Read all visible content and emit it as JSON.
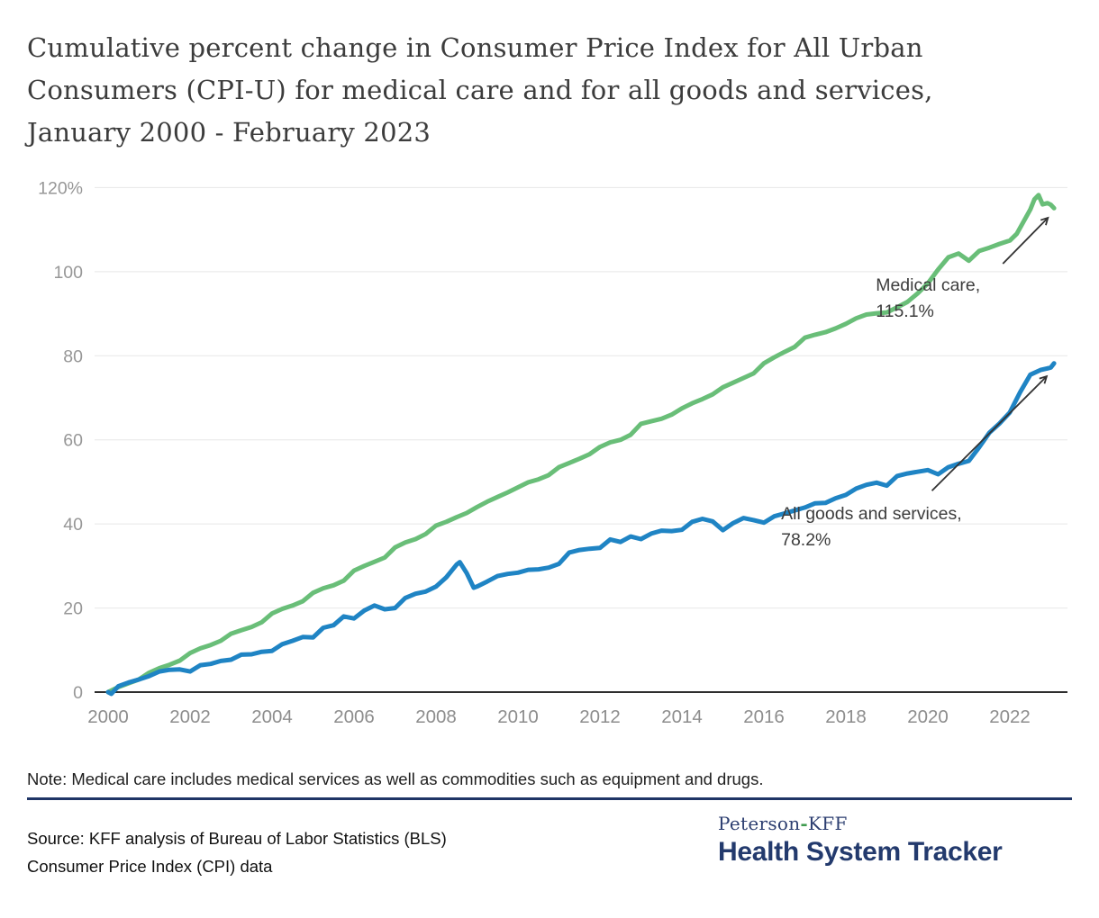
{
  "title_lines": [
    "Cumulative percent change in Consumer Price Index for All Urban",
    "Consumers (CPI-U) for medical care and for all goods and services,",
    "January 2000 - February 2023"
  ],
  "note": "Note: Medical care includes medical services as well as commodities such as equipment and drugs.",
  "source_line1": "Source: KFF analysis of Bureau of Labor Statistics (BLS)",
  "source_line2": "Consumer Price Index (CPI) data",
  "logo": {
    "prefix": "Peterson",
    "separator": "-",
    "suffix": "KFF",
    "name": "Health System Tracker"
  },
  "colors": {
    "medical_green": "#69be78",
    "goods_blue": "#1f84c4",
    "navy": "#233a6d",
    "divider_navy": "#1f3566",
    "gridline": "#e7e7e7",
    "axis_line": "#2e2e2e",
    "annotation_text": "#3d3d3d"
  },
  "chart_data": {
    "type": "line",
    "x_range": [
      2000,
      2023.25
    ],
    "y_range": [
      0,
      120
    ],
    "grid": "horizontal-only",
    "legend_position": "inline-annotations",
    "x_ticks": [
      2000,
      2002,
      2004,
      2006,
      2008,
      2010,
      2012,
      2014,
      2016,
      2018,
      2020,
      2022
    ],
    "y_ticks": [
      {
        "value": 0,
        "label": "0"
      },
      {
        "value": 20,
        "label": "20"
      },
      {
        "value": 40,
        "label": "40"
      },
      {
        "value": 60,
        "label": "60"
      },
      {
        "value": 80,
        "label": "80"
      },
      {
        "value": 100,
        "label": "100"
      },
      {
        "value": 120,
        "label": "120%"
      }
    ],
    "series": [
      {
        "id": "medical-care",
        "name": "Medical care",
        "color": "#69be78",
        "end_value": "115.1%",
        "annotation": {
          "lines": [
            "Medical care,",
            "115.1%"
          ],
          "x": 2018.73,
          "y": 95.5,
          "arrow": [
            2021.83,
            101.9,
            2022.93,
            112.8
          ]
        },
        "points": [
          [
            2000,
            0
          ],
          [
            2000.25,
            1.2
          ],
          [
            2000.5,
            2.1
          ],
          [
            2000.75,
            3.0
          ],
          [
            2001,
            4.6
          ],
          [
            2001.25,
            5.7
          ],
          [
            2001.5,
            6.5
          ],
          [
            2001.75,
            7.5
          ],
          [
            2002,
            9.3
          ],
          [
            2002.25,
            10.4
          ],
          [
            2002.5,
            11.2
          ],
          [
            2002.75,
            12.2
          ],
          [
            2003,
            13.9
          ],
          [
            2003.25,
            14.7
          ],
          [
            2003.5,
            15.5
          ],
          [
            2003.75,
            16.6
          ],
          [
            2004,
            18.7
          ],
          [
            2004.25,
            19.8
          ],
          [
            2004.5,
            20.6
          ],
          [
            2004.75,
            21.6
          ],
          [
            2005,
            23.6
          ],
          [
            2005.25,
            24.7
          ],
          [
            2005.5,
            25.4
          ],
          [
            2005.75,
            26.5
          ],
          [
            2006,
            28.9
          ],
          [
            2006.25,
            30.0
          ],
          [
            2006.5,
            31.0
          ],
          [
            2006.75,
            32.0
          ],
          [
            2007,
            34.4
          ],
          [
            2007.25,
            35.6
          ],
          [
            2007.5,
            36.4
          ],
          [
            2007.75,
            37.6
          ],
          [
            2008,
            39.6
          ],
          [
            2008.25,
            40.5
          ],
          [
            2008.5,
            41.6
          ],
          [
            2008.75,
            42.6
          ],
          [
            2009,
            44.0
          ],
          [
            2009.25,
            45.3
          ],
          [
            2009.5,
            46.4
          ],
          [
            2009.75,
            47.5
          ],
          [
            2010,
            48.7
          ],
          [
            2010.25,
            49.9
          ],
          [
            2010.5,
            50.6
          ],
          [
            2010.75,
            51.6
          ],
          [
            2011,
            53.5
          ],
          [
            2011.25,
            54.5
          ],
          [
            2011.5,
            55.5
          ],
          [
            2011.75,
            56.6
          ],
          [
            2012,
            58.3
          ],
          [
            2012.25,
            59.4
          ],
          [
            2012.5,
            60.0
          ],
          [
            2012.75,
            61.2
          ],
          [
            2013,
            63.8
          ],
          [
            2013.25,
            64.4
          ],
          [
            2013.5,
            65.0
          ],
          [
            2013.75,
            66.0
          ],
          [
            2014,
            67.5
          ],
          [
            2014.25,
            68.7
          ],
          [
            2014.5,
            69.7
          ],
          [
            2014.75,
            70.8
          ],
          [
            2015,
            72.5
          ],
          [
            2015.25,
            73.6
          ],
          [
            2015.5,
            74.7
          ],
          [
            2015.75,
            75.8
          ],
          [
            2016,
            78.2
          ],
          [
            2016.25,
            79.6
          ],
          [
            2016.5,
            80.9
          ],
          [
            2016.75,
            82.1
          ],
          [
            2017,
            84.3
          ],
          [
            2017.25,
            85.0
          ],
          [
            2017.5,
            85.6
          ],
          [
            2017.75,
            86.5
          ],
          [
            2018,
            87.6
          ],
          [
            2018.25,
            88.9
          ],
          [
            2018.5,
            89.8
          ],
          [
            2018.75,
            90.1
          ],
          [
            2019,
            90.3
          ],
          [
            2019.25,
            91.5
          ],
          [
            2019.5,
            92.8
          ],
          [
            2019.75,
            94.8
          ],
          [
            2020,
            97.2
          ],
          [
            2020.25,
            100.5
          ],
          [
            2020.5,
            103.4
          ],
          [
            2020.75,
            104.3
          ],
          [
            2021,
            102.6
          ],
          [
            2021.25,
            104.9
          ],
          [
            2021.5,
            105.7
          ],
          [
            2021.75,
            106.6
          ],
          [
            2022,
            107.4
          ],
          [
            2022.17,
            109.0
          ],
          [
            2022.33,
            111.8
          ],
          [
            2022.5,
            114.8
          ],
          [
            2022.6,
            117.2
          ],
          [
            2022.7,
            118.2
          ],
          [
            2022.8,
            116.0
          ],
          [
            2022.92,
            116.3
          ],
          [
            2023,
            115.9
          ],
          [
            2023.08,
            115.1
          ]
        ]
      },
      {
        "id": "all-goods-and-services",
        "name": "All goods and services",
        "color": "#1f84c4",
        "end_value": "78.2%",
        "annotation": {
          "lines": [
            "All goods and services,",
            "78.2%"
          ],
          "x": 2016.42,
          "y": 41.1,
          "arrow": [
            2020.1,
            47.9,
            2022.9,
            75.1
          ]
        },
        "points": [
          [
            2000,
            0
          ],
          [
            2000.08,
            -0.4
          ],
          [
            2000.25,
            1.4
          ],
          [
            2000.5,
            2.3
          ],
          [
            2000.75,
            3.0
          ],
          [
            2001,
            3.8
          ],
          [
            2001.25,
            4.9
          ],
          [
            2001.5,
            5.3
          ],
          [
            2001.75,
            5.4
          ],
          [
            2002,
            4.9
          ],
          [
            2002.25,
            6.4
          ],
          [
            2002.5,
            6.7
          ],
          [
            2002.75,
            7.4
          ],
          [
            2003,
            7.7
          ],
          [
            2003.25,
            8.9
          ],
          [
            2003.5,
            9.0
          ],
          [
            2003.75,
            9.6
          ],
          [
            2004,
            9.8
          ],
          [
            2004.25,
            11.4
          ],
          [
            2004.5,
            12.2
          ],
          [
            2004.75,
            13.1
          ],
          [
            2005,
            13.0
          ],
          [
            2005.25,
            15.3
          ],
          [
            2005.5,
            15.9
          ],
          [
            2005.75,
            18.0
          ],
          [
            2006,
            17.5
          ],
          [
            2006.25,
            19.4
          ],
          [
            2006.5,
            20.6
          ],
          [
            2006.75,
            19.7
          ],
          [
            2007,
            20.0
          ],
          [
            2007.25,
            22.4
          ],
          [
            2007.5,
            23.4
          ],
          [
            2007.75,
            23.9
          ],
          [
            2008,
            25.1
          ],
          [
            2008.25,
            27.3
          ],
          [
            2008.5,
            30.3
          ],
          [
            2008.58,
            30.9
          ],
          [
            2008.75,
            28.3
          ],
          [
            2008.92,
            24.8
          ],
          [
            2009,
            25.1
          ],
          [
            2009.25,
            26.3
          ],
          [
            2009.5,
            27.6
          ],
          [
            2009.75,
            28.1
          ],
          [
            2010,
            28.4
          ],
          [
            2010.25,
            29.1
          ],
          [
            2010.5,
            29.2
          ],
          [
            2010.75,
            29.6
          ],
          [
            2011,
            30.5
          ],
          [
            2011.25,
            33.2
          ],
          [
            2011.5,
            33.8
          ],
          [
            2011.75,
            34.1
          ],
          [
            2012,
            34.3
          ],
          [
            2012.25,
            36.3
          ],
          [
            2012.5,
            35.7
          ],
          [
            2012.75,
            37.0
          ],
          [
            2013,
            36.4
          ],
          [
            2013.25,
            37.7
          ],
          [
            2013.5,
            38.4
          ],
          [
            2013.75,
            38.3
          ],
          [
            2014,
            38.6
          ],
          [
            2014.25,
            40.5
          ],
          [
            2014.5,
            41.2
          ],
          [
            2014.75,
            40.6
          ],
          [
            2015,
            38.5
          ],
          [
            2015.25,
            40.2
          ],
          [
            2015.5,
            41.4
          ],
          [
            2015.75,
            40.9
          ],
          [
            2016,
            40.3
          ],
          [
            2016.25,
            41.8
          ],
          [
            2016.5,
            42.5
          ],
          [
            2016.75,
            43.2
          ],
          [
            2017,
            43.9
          ],
          [
            2017.25,
            44.9
          ],
          [
            2017.5,
            45.0
          ],
          [
            2017.75,
            46.1
          ],
          [
            2018,
            46.9
          ],
          [
            2018.25,
            48.4
          ],
          [
            2018.5,
            49.3
          ],
          [
            2018.75,
            49.8
          ],
          [
            2019,
            49.1
          ],
          [
            2019.25,
            51.4
          ],
          [
            2019.5,
            52.0
          ],
          [
            2019.75,
            52.4
          ],
          [
            2020,
            52.8
          ],
          [
            2020.25,
            51.8
          ],
          [
            2020.5,
            53.5
          ],
          [
            2020.75,
            54.3
          ],
          [
            2021,
            55.0
          ],
          [
            2021.25,
            58.2
          ],
          [
            2021.5,
            61.7
          ],
          [
            2021.75,
            63.9
          ],
          [
            2022,
            66.5
          ],
          [
            2022.25,
            71.3
          ],
          [
            2022.5,
            75.5
          ],
          [
            2022.75,
            76.6
          ],
          [
            2022.92,
            77.0
          ],
          [
            2023,
            77.2
          ],
          [
            2023.08,
            78.2
          ]
        ]
      }
    ]
  }
}
